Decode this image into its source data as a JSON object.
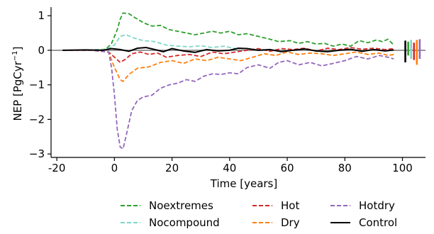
{
  "chart_data": {
    "type": "line",
    "xlabel": "Time [years]",
    "ylabel_main": "NEP [PgCyr",
    "ylabel_sup": "−1",
    "ylabel_end": "]",
    "xlim": [
      -22,
      108
    ],
    "ylim": [
      -3.1,
      1.25
    ],
    "xticks": [
      -20,
      0,
      20,
      40,
      60,
      80,
      100
    ],
    "xtick_labels": [
      "-20",
      "0",
      "20",
      "40",
      "60",
      "80",
      "100"
    ],
    "yticks": [
      1,
      0,
      -1,
      -2,
      -3
    ],
    "ytick_labels": [
      "1",
      "0",
      "−1",
      "−2",
      "−3"
    ],
    "zero_line": 0,
    "legend_position": "bottom",
    "series": [
      {
        "name": "Noextremes",
        "color": "#2ca02c",
        "dash": "dashed",
        "points": [
          [
            -18,
            0
          ],
          [
            -10,
            0
          ],
          [
            -3,
            0.03
          ],
          [
            -1,
            0.2
          ],
          [
            1,
            0.6
          ],
          [
            2,
            0.9
          ],
          [
            3,
            1.08
          ],
          [
            5,
            1.06
          ],
          [
            7,
            0.95
          ],
          [
            10,
            0.8
          ],
          [
            13,
            0.7
          ],
          [
            16,
            0.72
          ],
          [
            19,
            0.6
          ],
          [
            22,
            0.55
          ],
          [
            25,
            0.5
          ],
          [
            28,
            0.45
          ],
          [
            31,
            0.5
          ],
          [
            34,
            0.55
          ],
          [
            37,
            0.5
          ],
          [
            40,
            0.55
          ],
          [
            43,
            0.45
          ],
          [
            46,
            0.48
          ],
          [
            50,
            0.4
          ],
          [
            54,
            0.32
          ],
          [
            57,
            0.25
          ],
          [
            61,
            0.28
          ],
          [
            64,
            0.2
          ],
          [
            67,
            0.25
          ],
          [
            70,
            0.18
          ],
          [
            73,
            0.2
          ],
          [
            76,
            0.12
          ],
          [
            79,
            0.18
          ],
          [
            82,
            0.12
          ],
          [
            85,
            0.28
          ],
          [
            88,
            0.22
          ],
          [
            91,
            0.3
          ],
          [
            93,
            0.25
          ],
          [
            95,
            0.32
          ],
          [
            97,
            0.15
          ]
        ]
      },
      {
        "name": "Nocompound",
        "color": "#7fd6c8",
        "dash": "dashed",
        "points": [
          [
            -18,
            0
          ],
          [
            -10,
            0
          ],
          [
            -3,
            0.02
          ],
          [
            0,
            0.15
          ],
          [
            2,
            0.4
          ],
          [
            4,
            0.45
          ],
          [
            7,
            0.35
          ],
          [
            10,
            0.28
          ],
          [
            14,
            0.25
          ],
          [
            18,
            0.15
          ],
          [
            22,
            0.12
          ],
          [
            26,
            0.1
          ],
          [
            30,
            0.13
          ],
          [
            34,
            0.08
          ],
          [
            38,
            0.12
          ],
          [
            42,
            0.05
          ]
        ]
      },
      {
        "name": "Hot",
        "color": "#d62728",
        "dash": "dashed",
        "points": [
          [
            -18,
            0
          ],
          [
            -8,
            0
          ],
          [
            -2,
            -0.05
          ],
          [
            0,
            -0.2
          ],
          [
            2,
            -0.35
          ],
          [
            4,
            -0.25
          ],
          [
            6,
            -0.1
          ],
          [
            9,
            -0.05
          ],
          [
            12,
            -0.12
          ],
          [
            15,
            -0.08
          ],
          [
            18,
            -0.2
          ],
          [
            22,
            -0.15
          ],
          [
            26,
            -0.12
          ],
          [
            30,
            -0.18
          ],
          [
            34,
            -0.05
          ],
          [
            38,
            -0.1
          ],
          [
            42,
            -0.05
          ],
          [
            46,
            0
          ],
          [
            50,
            0.05
          ],
          [
            54,
            -0.03
          ],
          [
            58,
            0.05
          ],
          [
            62,
            0.02
          ],
          [
            66,
            0.06
          ],
          [
            70,
            -0.02
          ],
          [
            74,
            0.06
          ],
          [
            78,
            0.02
          ],
          [
            82,
            0.08
          ],
          [
            86,
            0.03
          ],
          [
            90,
            0.06
          ],
          [
            94,
            0.02
          ],
          [
            97,
            0.05
          ]
        ]
      },
      {
        "name": "Dry",
        "color": "#ff7f0e",
        "dash": "dashed",
        "points": [
          [
            -18,
            0
          ],
          [
            -8,
            0
          ],
          [
            -2,
            -0.05
          ],
          [
            0,
            -0.5
          ],
          [
            2,
            -0.85
          ],
          [
            3,
            -0.9
          ],
          [
            5,
            -0.7
          ],
          [
            8,
            -0.52
          ],
          [
            12,
            -0.48
          ],
          [
            16,
            -0.35
          ],
          [
            20,
            -0.3
          ],
          [
            24,
            -0.38
          ],
          [
            28,
            -0.25
          ],
          [
            32,
            -0.3
          ],
          [
            36,
            -0.2
          ],
          [
            40,
            -0.25
          ],
          [
            44,
            -0.3
          ],
          [
            48,
            -0.2
          ],
          [
            52,
            -0.1
          ],
          [
            56,
            -0.15
          ],
          [
            60,
            -0.05
          ],
          [
            64,
            -0.12
          ],
          [
            68,
            -0.08
          ],
          [
            72,
            -0.1
          ],
          [
            76,
            -0.15
          ],
          [
            80,
            -0.1
          ],
          [
            84,
            -0.05
          ],
          [
            88,
            -0.12
          ],
          [
            92,
            -0.08
          ],
          [
            95,
            -0.15
          ],
          [
            97,
            -0.12
          ]
        ]
      },
      {
        "name": "Hotdry",
        "color": "#9467bd",
        "dash": "dashed",
        "points": [
          [
            -18,
            0
          ],
          [
            -8,
            0
          ],
          [
            -2,
            -0.05
          ],
          [
            -1,
            -0.5
          ],
          [
            0,
            -1.3
          ],
          [
            1,
            -2.3
          ],
          [
            2,
            -2.8
          ],
          [
            3,
            -2.85
          ],
          [
            4,
            -2.5
          ],
          [
            6,
            -1.75
          ],
          [
            8,
            -1.45
          ],
          [
            10,
            -1.35
          ],
          [
            13,
            -1.3
          ],
          [
            16,
            -1.1
          ],
          [
            19,
            -1.0
          ],
          [
            22,
            -0.95
          ],
          [
            25,
            -0.85
          ],
          [
            28,
            -0.9
          ],
          [
            31,
            -0.75
          ],
          [
            34,
            -0.68
          ],
          [
            37,
            -0.7
          ],
          [
            40,
            -0.65
          ],
          [
            43,
            -0.68
          ],
          [
            46,
            -0.5
          ],
          [
            50,
            -0.42
          ],
          [
            54,
            -0.52
          ],
          [
            57,
            -0.35
          ],
          [
            60,
            -0.3
          ],
          [
            64,
            -0.42
          ],
          [
            68,
            -0.35
          ],
          [
            72,
            -0.45
          ],
          [
            76,
            -0.38
          ],
          [
            80,
            -0.3
          ],
          [
            84,
            -0.18
          ],
          [
            88,
            -0.25
          ],
          [
            92,
            -0.15
          ],
          [
            95,
            -0.2
          ],
          [
            97,
            -0.25
          ]
        ]
      },
      {
        "name": "Control",
        "color": "#000000",
        "dash": "solid",
        "points": [
          [
            -18,
            0
          ],
          [
            -10,
            0.01
          ],
          [
            -4,
            0
          ],
          [
            -1,
            0.05
          ],
          [
            2,
            0.02
          ],
          [
            5,
            -0.03
          ],
          [
            8,
            0.06
          ],
          [
            11,
            0.08
          ],
          [
            14,
            0.02
          ],
          [
            17,
            -0.04
          ],
          [
            20,
            0.05
          ],
          [
            24,
            -0.02
          ],
          [
            28,
            -0.06
          ],
          [
            32,
            0.02
          ],
          [
            36,
            -0.02
          ],
          [
            40,
            0
          ],
          [
            43,
            0.06
          ],
          [
            46,
            0.05
          ],
          [
            50,
            0
          ],
          [
            54,
            0.02
          ],
          [
            58,
            -0.04
          ],
          [
            62,
            0
          ],
          [
            66,
            0.04
          ],
          [
            70,
            -0.02
          ],
          [
            74,
            -0.04
          ],
          [
            78,
            0
          ],
          [
            82,
            0.03
          ],
          [
            86,
            -0.03
          ],
          [
            90,
            0.02
          ],
          [
            94,
            -0.02
          ],
          [
            97,
            0.01
          ]
        ]
      }
    ],
    "range_bars": [
      {
        "series": "Control",
        "x": 101.0,
        "low": -0.35,
        "high": 0.28
      },
      {
        "series": "Noextremes",
        "x": 102.0,
        "low": -0.15,
        "high": 0.25
      },
      {
        "series": "Nocompound",
        "x": 103.0,
        "low": -0.25,
        "high": 0.3
      },
      {
        "series": "Hot",
        "x": 104.0,
        "low": -0.28,
        "high": 0.22
      },
      {
        "series": "Dry",
        "x": 105.0,
        "low": -0.42,
        "high": 0.3
      },
      {
        "series": "Hotdry",
        "x": 106.0,
        "low": -0.25,
        "high": 0.32
      }
    ]
  },
  "legend": [
    {
      "label": "Noextremes",
      "color": "#2ca02c",
      "dash": "dashed"
    },
    {
      "label": "Nocompound",
      "color": "#7fd6c8",
      "dash": "dashed"
    },
    {
      "label": "Hot",
      "color": "#d62728",
      "dash": "dashed"
    },
    {
      "label": "Dry",
      "color": "#ff7f0e",
      "dash": "dashed"
    },
    {
      "label": "Hotdry",
      "color": "#9467bd",
      "dash": "dashed"
    },
    {
      "label": "Control",
      "color": "#000000",
      "dash": "solid"
    }
  ]
}
